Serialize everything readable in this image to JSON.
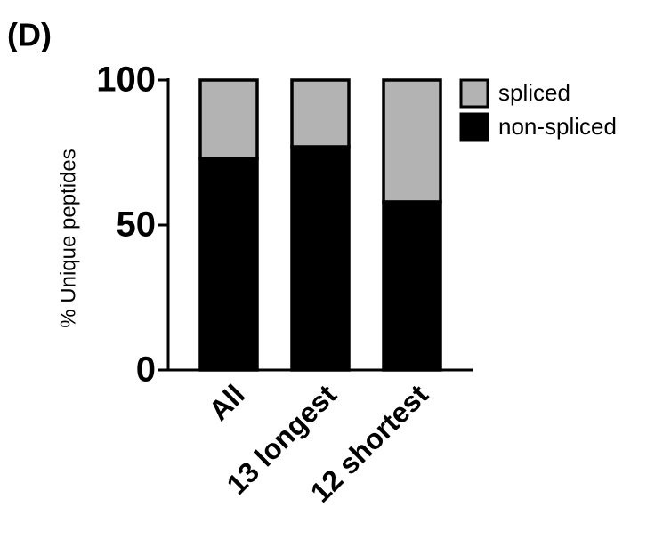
{
  "chart_data": {
    "type": "stacked_bar",
    "panel_label": "(D)",
    "y_label": "% Unique peptides",
    "categories": [
      "All",
      "13 longest",
      "12 shortest"
    ],
    "series": [
      {
        "name": "non-spliced",
        "color": "#000000",
        "values": [
          73,
          77,
          58
        ]
      },
      {
        "name": "spliced",
        "color": "#b3b3b3",
        "values": [
          27,
          23,
          42
        ]
      }
    ],
    "ylim": [
      0,
      100
    ],
    "yticks": [
      0,
      50,
      100
    ]
  }
}
